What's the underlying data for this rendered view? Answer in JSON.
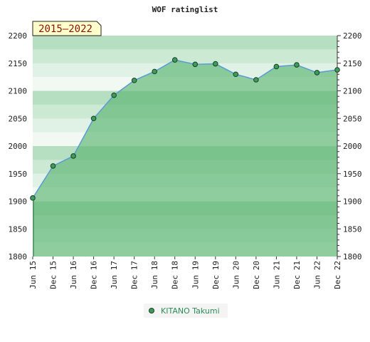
{
  "chart_data": {
    "type": "area",
    "title": "WOF ratinglist",
    "badge": "2015—2022",
    "xlabel": "",
    "ylabel": "",
    "ylim": [
      1800,
      2200
    ],
    "yticks": [
      1800,
      1850,
      1900,
      1950,
      2000,
      2050,
      2100,
      2150,
      2200
    ],
    "categories": [
      "Jun 15",
      "Dec 15",
      "Jun 16",
      "Dec 16",
      "Jun 17",
      "Dec 17",
      "Jun 18",
      "Dec 18",
      "Jun 19",
      "Dec 19",
      "Jun 20",
      "Dec 20",
      "Jun 21",
      "Dec 21",
      "Jun 22",
      "Dec 22"
    ],
    "grid": true,
    "legend_position": "bottom-center",
    "series": [
      {
        "name": "KITANO Takumi",
        "values": [
          1906,
          1964,
          1982,
          2050,
          2092,
          2119,
          2135,
          2156,
          2148,
          2149,
          2130,
          2120,
          2144,
          2147,
          2133,
          2138
        ]
      }
    ],
    "colors": {
      "line": "#5b9bd5",
      "fill": "#7dc48f",
      "marker": "#3e9b5c",
      "legend_text": "#2e8b57",
      "badge_bg": "#ffffcc",
      "badge_text": "#8a1010"
    }
  }
}
